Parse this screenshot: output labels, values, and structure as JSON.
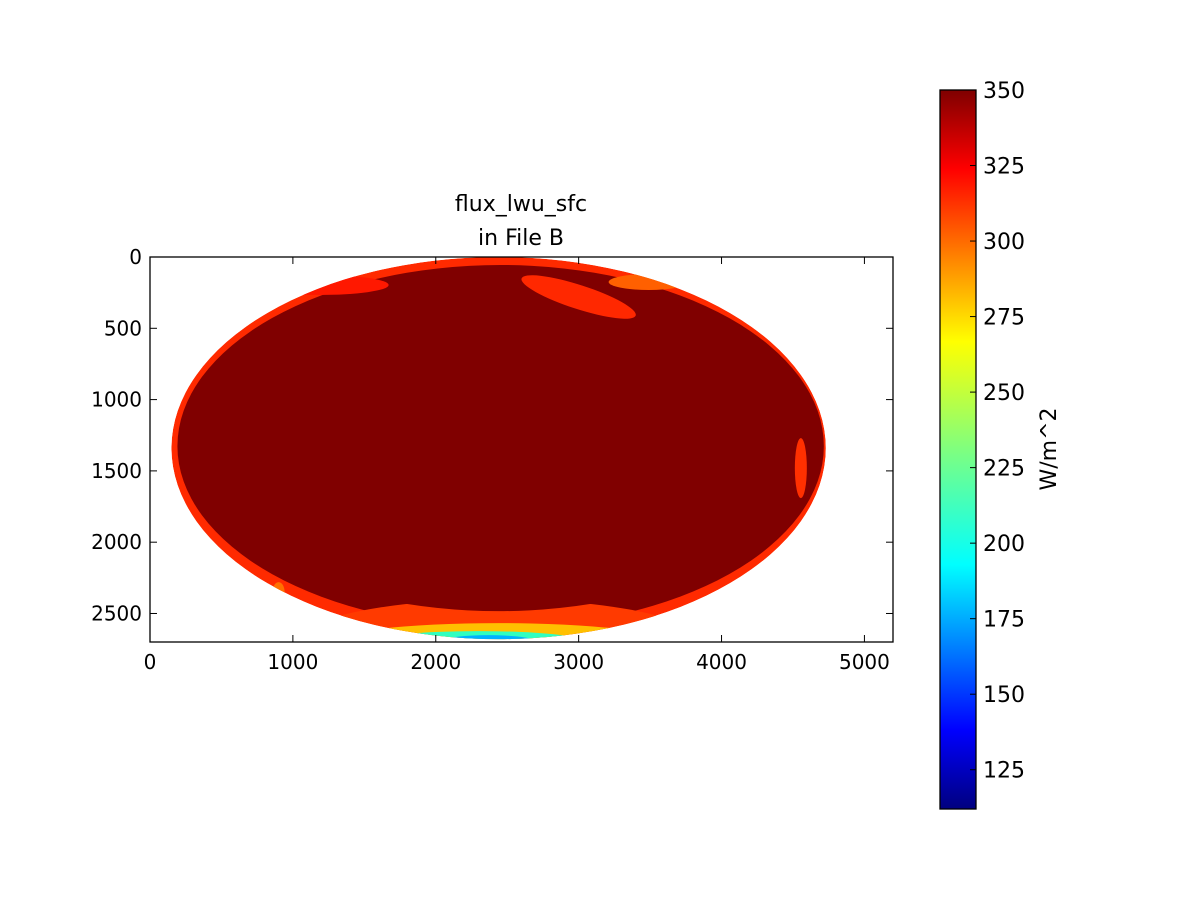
{
  "chart_data": {
    "type": "heatmap",
    "title_lines": [
      "flux_lwu_sfc",
      "in File B"
    ],
    "xlim": [
      0,
      5200
    ],
    "ylim": [
      2700,
      0
    ],
    "x_ticks": [
      0,
      1000,
      2000,
      3000,
      4000,
      5000
    ],
    "y_ticks": [
      0,
      500,
      1000,
      1500,
      2000,
      2500
    ],
    "x_tick_labels": [
      "0",
      "1000",
      "2000",
      "3000",
      "4000",
      "5000"
    ],
    "y_tick_labels": [
      "0",
      "500",
      "1000",
      "1500",
      "2000",
      "2500"
    ],
    "colormap": "jet",
    "colorbar": {
      "label": "W/m^2",
      "vmin": 112,
      "vmax": 350,
      "ticks": [
        125,
        150,
        175,
        200,
        225,
        250,
        275,
        300,
        325,
        350
      ],
      "tick_labels": [
        "125",
        "150",
        "175",
        "200",
        "225",
        "250",
        "275",
        "300",
        "325",
        "350"
      ]
    },
    "disk": {
      "center": [
        2440,
        1340
      ],
      "radii": [
        2290,
        1340
      ],
      "dominant_value": 350
    },
    "dominant_value": 350,
    "colors": {
      "jet_stops": [
        "#00007f",
        "#0000ff",
        "#007fff",
        "#00ffff",
        "#7fff7f",
        "#ffff00",
        "#ff7f00",
        "#ff0000",
        "#7f0000"
      ],
      "dominant": "#800000"
    }
  }
}
